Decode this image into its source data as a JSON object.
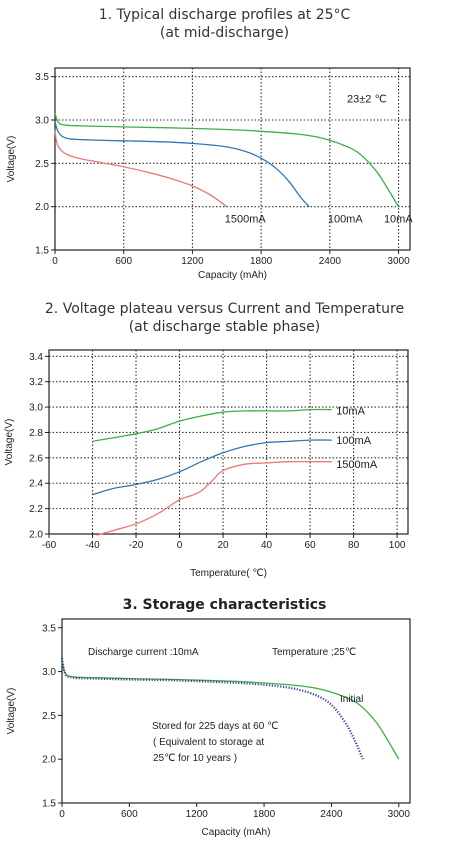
{
  "chart_data": [
    {
      "type": "line",
      "title_line1": "1. Typical discharge profiles at 25°C",
      "title_line2": "(at mid-discharge)",
      "xlabel": "Capacity (mAh)",
      "ylabel": "Voltage(V)",
      "xlim": [
        0,
        3100
      ],
      "ylim": [
        1.5,
        3.6
      ],
      "xticks": [
        "0",
        "600",
        "1200",
        "1800",
        "2400",
        "3000"
      ],
      "xtick_values": [
        0,
        600,
        1200,
        1800,
        2400,
        3000
      ],
      "yticks": [
        "1.5",
        "2.0",
        "2.5",
        "3.0",
        "3.5"
      ],
      "ytick_values": [
        1.5,
        2.0,
        2.5,
        3.0,
        3.5
      ],
      "grid": true,
      "annotation": "23±2 ℃",
      "series": [
        {
          "name": "10mA",
          "color": "#3fae45",
          "x": [
            0,
            30,
            100,
            300,
            600,
            1000,
            1500,
            1800,
            2100,
            2300,
            2500,
            2650,
            2800,
            2900,
            3000
          ],
          "y": [
            3.08,
            2.97,
            2.94,
            2.93,
            2.92,
            2.91,
            2.89,
            2.87,
            2.84,
            2.8,
            2.72,
            2.62,
            2.42,
            2.22,
            2.0
          ]
        },
        {
          "name": "100mA",
          "color": "#2f78b7",
          "x": [
            0,
            30,
            100,
            300,
            600,
            900,
            1200,
            1500,
            1700,
            1850,
            1950,
            2050,
            2150,
            2220
          ],
          "y": [
            2.98,
            2.86,
            2.79,
            2.77,
            2.76,
            2.75,
            2.73,
            2.69,
            2.62,
            2.52,
            2.42,
            2.28,
            2.1,
            2.0
          ]
        },
        {
          "name": "1500mA",
          "color": "#e87a7a",
          "x": [
            0,
            20,
            80,
            200,
            400,
            600,
            800,
            1000,
            1200,
            1350,
            1450,
            1500
          ],
          "y": [
            2.88,
            2.72,
            2.62,
            2.56,
            2.51,
            2.46,
            2.4,
            2.33,
            2.24,
            2.14,
            2.05,
            2.0
          ]
        }
      ],
      "series_labels": [
        "1500mA",
        "100mA",
        "10mA"
      ]
    },
    {
      "type": "line",
      "title_line1": "2. Voltage plateau versus Current and Temperature",
      "title_line2": "(at discharge stable phase)",
      "xlabel": "Temperature(  ℃)",
      "ylabel": "Voltage(V)",
      "xlim": [
        -60,
        105
      ],
      "ylim": [
        2.0,
        3.45
      ],
      "xticks": [
        "-60",
        "-40",
        "-20",
        "0",
        "20",
        "40",
        "60",
        "80",
        "100"
      ],
      "xtick_values": [
        -60,
        -40,
        -20,
        0,
        20,
        40,
        60,
        80,
        100
      ],
      "yticks": [
        "2.0",
        "2.2",
        "2.4",
        "2.6",
        "2.8",
        "3.0",
        "3.2",
        "3.4"
      ],
      "ytick_values": [
        2.0,
        2.2,
        2.4,
        2.6,
        2.8,
        3.0,
        3.2,
        3.4
      ],
      "grid": true,
      "series": [
        {
          "name": "10mA",
          "color": "#3fae45",
          "x": [
            -40,
            -30,
            -20,
            -10,
            0,
            10,
            20,
            30,
            40,
            50,
            60,
            70
          ],
          "y": [
            2.73,
            2.76,
            2.79,
            2.83,
            2.89,
            2.93,
            2.96,
            2.97,
            2.97,
            2.97,
            2.98,
            2.98
          ]
        },
        {
          "name": "100mA",
          "color": "#2f78b7",
          "x": [
            -40,
            -30,
            -20,
            -10,
            0,
            10,
            20,
            30,
            40,
            50,
            60,
            70
          ],
          "y": [
            2.31,
            2.36,
            2.39,
            2.43,
            2.49,
            2.57,
            2.64,
            2.69,
            2.72,
            2.73,
            2.74,
            2.74
          ]
        },
        {
          "name": "1500mA",
          "color": "#e87a7a",
          "x": [
            -38,
            -30,
            -20,
            -10,
            0,
            5,
            10,
            15,
            20,
            30,
            40,
            50,
            60,
            70
          ],
          "y": [
            1.99,
            2.03,
            2.08,
            2.16,
            2.27,
            2.3,
            2.34,
            2.42,
            2.5,
            2.55,
            2.56,
            2.57,
            2.57,
            2.57
          ]
        }
      ],
      "series_labels": [
        "10mA",
        "100mA",
        "1500mA"
      ]
    },
    {
      "type": "line",
      "title": "3. Storage characteristics",
      "xlabel": "Capacity (mAh)",
      "ylabel": "Voltage(V)",
      "xlim": [
        0,
        3100
      ],
      "ylim": [
        1.5,
        3.6
      ],
      "xticks": [
        "0",
        "600",
        "1200",
        "1800",
        "2400",
        "3000"
      ],
      "xtick_values": [
        0,
        600,
        1200,
        1800,
        2400,
        3000
      ],
      "yticks": [
        "1.5",
        "2.0",
        "2.5",
        "3.0",
        "3.5"
      ],
      "ytick_values": [
        1.5,
        2.0,
        2.5,
        3.0,
        3.5
      ],
      "grid": false,
      "annotations": {
        "discharge_current": "Discharge current  :10mA",
        "temperature": "Temperature  ;25℃",
        "stored_line1": "Stored for 225 days at 60 ℃",
        "stored_line2": "( Equivalent to storage at",
        "stored_line3": "25℃ for 10 years   )"
      },
      "series": [
        {
          "name": "Initial",
          "color": "#3fae45",
          "x": [
            0,
            30,
            100,
            300,
            600,
            1000,
            1500,
            1800,
            2100,
            2300,
            2500,
            2650,
            2800,
            2900,
            3000
          ],
          "y": [
            3.12,
            2.98,
            2.94,
            2.93,
            2.92,
            2.91,
            2.89,
            2.87,
            2.84,
            2.8,
            2.72,
            2.62,
            2.42,
            2.22,
            2.0
          ]
        },
        {
          "name": "Stored",
          "color": "#3b3b9e",
          "x": [
            0,
            30,
            100,
            300,
            600,
            1000,
            1400,
            1700,
            2000,
            2200,
            2350,
            2450,
            2550,
            2620,
            2680
          ],
          "y": [
            3.15,
            2.97,
            2.93,
            2.92,
            2.91,
            2.9,
            2.88,
            2.86,
            2.82,
            2.76,
            2.67,
            2.55,
            2.36,
            2.18,
            2.0
          ]
        }
      ],
      "series_labels": [
        "Initial"
      ]
    }
  ]
}
